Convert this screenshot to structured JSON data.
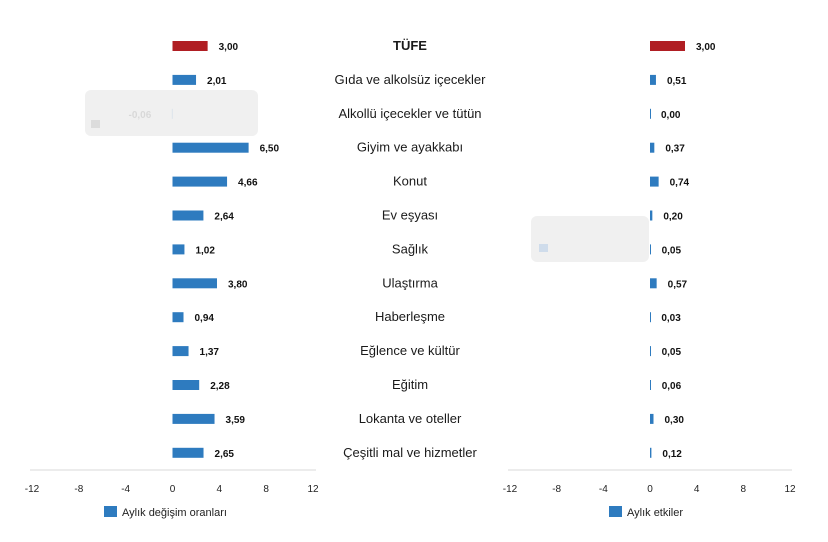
{
  "colors": {
    "series": "#2e7bbf",
    "highlight": "#b01e23"
  },
  "chart_data": [
    {
      "type": "bar",
      "orientation": "horizontal",
      "categories": [
        "TÜFE",
        "Gıda ve alkolsüz içecekler",
        "Alkollü içecekler ve tütün",
        "Giyim ve ayakkabı",
        "Konut",
        "Ev eşyası",
        "Sağlık",
        "Ulaştırma",
        "Haberleşme",
        "Eğlence ve kültür",
        "Eğitim",
        "Lokanta ve oteller",
        "Çeşitli mal ve hizmetler"
      ],
      "series": [
        {
          "name": "Aylık değişim oranları",
          "values": [
            3.0,
            2.01,
            -0.06,
            6.5,
            4.66,
            2.64,
            1.02,
            3.8,
            0.94,
            1.37,
            2.28,
            3.59,
            2.65
          ]
        }
      ],
      "value_labels": [
        "3,00",
        "2,01",
        "-0,06",
        "6,50",
        "4,66",
        "2,64",
        "1,02",
        "3,80",
        "0,94",
        "1,37",
        "2,28",
        "3,59",
        "2,65"
      ],
      "highlight_index": 0,
      "xlim": [
        -12,
        12
      ],
      "xticks": [
        -12,
        -8,
        -4,
        0,
        4,
        8,
        12
      ],
      "xtick_labels": [
        "-12",
        "-8",
        "-4",
        "0",
        "4",
        "8",
        "12"
      ],
      "legend": "bottom-left"
    },
    {
      "type": "bar",
      "orientation": "horizontal",
      "categories": [
        "TÜFE",
        "Gıda ve alkolsüz içecekler",
        "Alkollü içecekler ve tütün",
        "Giyim ve ayakkabı",
        "Konut",
        "Ev eşyası",
        "Sağlık",
        "Ulaştırma",
        "Haberleşme",
        "Eğlence ve kültür",
        "Eğitim",
        "Lokanta ve oteller",
        "Çeşitli mal ve hizmetler"
      ],
      "series": [
        {
          "name": "Aylık etkiler",
          "values": [
            3.0,
            0.51,
            0.0,
            0.37,
            0.74,
            0.2,
            0.05,
            0.57,
            0.03,
            0.05,
            0.06,
            0.3,
            0.12
          ]
        }
      ],
      "value_labels": [
        "3,00",
        "0,51",
        "0,00",
        "0,37",
        "0,74",
        "0,20",
        "0,05",
        "0,57",
        "0,03",
        "0,05",
        "0,06",
        "0,30",
        "0,12"
      ],
      "highlight_index": 0,
      "xlim": [
        -12,
        12
      ],
      "xticks": [
        -12,
        -8,
        -4,
        0,
        4,
        8,
        12
      ],
      "xtick_labels": [
        "-12",
        "-8",
        "-4",
        "0",
        "4",
        "8",
        "12"
      ],
      "legend": "bottom-center"
    }
  ]
}
